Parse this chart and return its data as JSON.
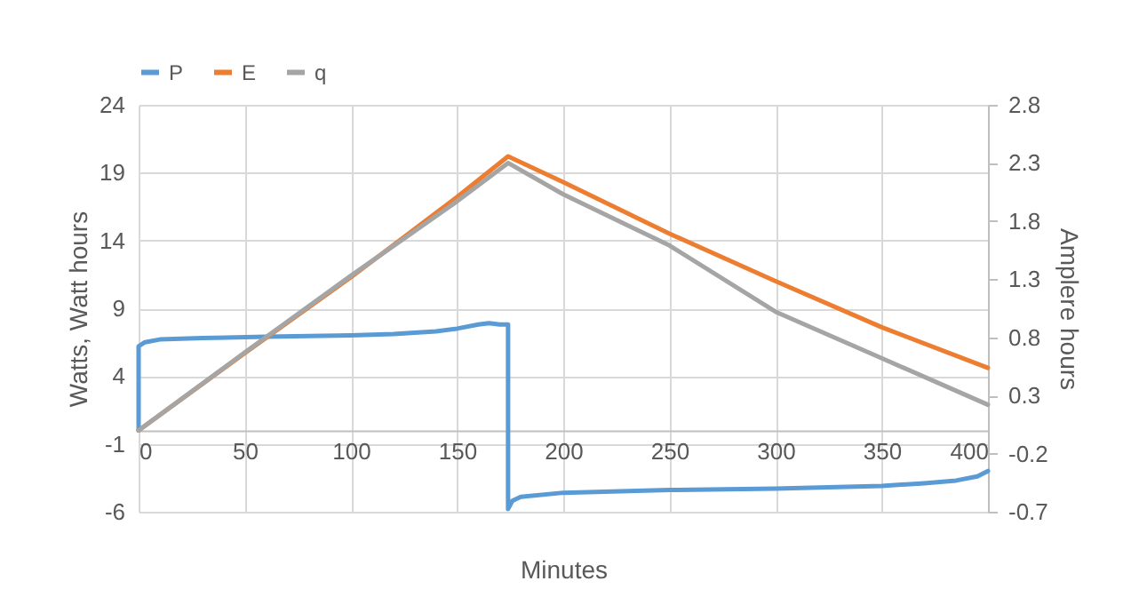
{
  "chart_data": {
    "type": "line",
    "xlabel": "Minutes",
    "ylabel": "Watts, Watt hours",
    "y2label": "Amplere hours",
    "legend": "top",
    "grid": true,
    "xlim": [
      0,
      400
    ],
    "xticks": [
      0,
      50,
      100,
      150,
      200,
      250,
      300,
      350,
      400
    ],
    "ylim": [
      -6,
      24
    ],
    "yticks": [
      -6,
      -1,
      4,
      9,
      14,
      19,
      24
    ],
    "y2lim": [
      -0.7,
      2.8
    ],
    "y2ticks": [
      -0.7,
      -0.2,
      0.3,
      0.8,
      1.3,
      1.8,
      2.3,
      2.8
    ],
    "series": [
      {
        "name": "P",
        "color": "#5b9bd5",
        "x": [
          0,
          0,
          3,
          10,
          30,
          60,
          100,
          120,
          140,
          150,
          160,
          165,
          170,
          174,
          174,
          176,
          180,
          200,
          250,
          300,
          350,
          370,
          385,
          395,
          400
        ],
        "values": [
          0,
          6.2,
          6.5,
          6.7,
          6.8,
          6.9,
          7.0,
          7.1,
          7.3,
          7.5,
          7.8,
          7.9,
          7.8,
          7.8,
          -5.8,
          -5.2,
          -4.9,
          -4.6,
          -4.4,
          -4.3,
          -4.1,
          -3.9,
          -3.7,
          -3.4,
          -3.0
        ]
      },
      {
        "name": "E",
        "color": "#ed7d31",
        "x": [
          0,
          50,
          100,
          150,
          174,
          200,
          250,
          300,
          350,
          400
        ],
        "values": [
          0,
          5.7,
          11.3,
          17.2,
          20.2,
          18.3,
          14.5,
          11.0,
          7.6,
          4.6
        ]
      },
      {
        "name": "q",
        "color": "#a5a5a5",
        "axis": "y2",
        "x": [
          0,
          50,
          100,
          150,
          174,
          200,
          250,
          300,
          350,
          400
        ],
        "values": [
          0,
          0.67,
          1.33,
          1.97,
          2.3,
          2.03,
          1.59,
          1.02,
          0.62,
          0.22
        ]
      }
    ]
  }
}
